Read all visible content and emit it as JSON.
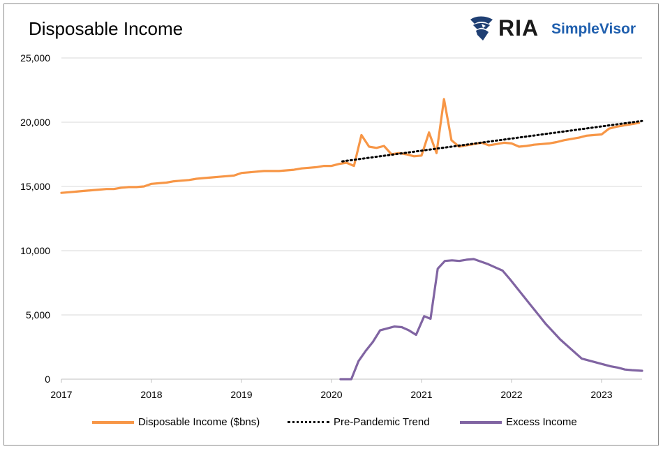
{
  "chart_data": {
    "type": "line",
    "title": "Disposable Income",
    "brand": {
      "name": "RIA",
      "product": "SimpleVisor",
      "product_color": "#1f5fae",
      "icon": "eagle-icon"
    },
    "ylim": [
      0,
      25000
    ],
    "yticks": [
      "25,000",
      "20,000",
      "15,000",
      "10,000",
      "5,000",
      "0"
    ],
    "ytick_values": [
      25000,
      20000,
      15000,
      10000,
      5000,
      0
    ],
    "xlim": [
      2017.0,
      2023.45
    ],
    "xticks": [
      "2017",
      "2018",
      "2019",
      "2020",
      "2021",
      "2022",
      "2023"
    ],
    "xtick_values": [
      2017,
      2018,
      2019,
      2020,
      2021,
      2022,
      2023
    ],
    "grid": "horizontal",
    "legend_position": "bottom",
    "series": [
      {
        "name": "Disposable Income ($bns)",
        "color": "#f79646",
        "style": "solid",
        "x": [
          2017.0,
          2017.083,
          2017.167,
          2017.25,
          2017.333,
          2017.417,
          2017.5,
          2017.583,
          2017.667,
          2017.75,
          2017.833,
          2017.917,
          2018.0,
          2018.083,
          2018.167,
          2018.25,
          2018.333,
          2018.417,
          2018.5,
          2018.583,
          2018.667,
          2018.75,
          2018.833,
          2018.917,
          2019.0,
          2019.083,
          2019.167,
          2019.25,
          2019.333,
          2019.417,
          2019.5,
          2019.583,
          2019.667,
          2019.75,
          2019.833,
          2019.917,
          2020.0,
          2020.083,
          2020.167,
          2020.25,
          2020.333,
          2020.417,
          2020.5,
          2020.583,
          2020.667,
          2020.75,
          2020.833,
          2020.917,
          2021.0,
          2021.083,
          2021.167,
          2021.25,
          2021.333,
          2021.417,
          2021.5,
          2021.583,
          2021.667,
          2021.75,
          2021.833,
          2021.917,
          2022.0,
          2022.083,
          2022.167,
          2022.25,
          2022.333,
          2022.417,
          2022.5,
          2022.583,
          2022.667,
          2022.75,
          2022.833,
          2022.917,
          2023.0,
          2023.083,
          2023.167,
          2023.25,
          2023.333,
          2023.417
        ],
        "values": [
          14500,
          14550,
          14600,
          14650,
          14700,
          14750,
          14800,
          14800,
          14900,
          14950,
          14950,
          15000,
          15200,
          15250,
          15300,
          15400,
          15450,
          15500,
          15600,
          15650,
          15700,
          15750,
          15800,
          15850,
          16050,
          16100,
          16150,
          16200,
          16200,
          16200,
          16250,
          16300,
          16400,
          16450,
          16500,
          16600,
          16600,
          16750,
          16850,
          16600,
          19000,
          18100,
          18000,
          18150,
          17500,
          17600,
          17500,
          17350,
          17400,
          19200,
          17600,
          21800,
          18600,
          18100,
          18200,
          18300,
          18400,
          18200,
          18300,
          18400,
          18350,
          18100,
          18150,
          18250,
          18300,
          18350,
          18450,
          18600,
          18700,
          18800,
          18950,
          19000,
          19050,
          19500,
          19650,
          19750,
          19850,
          19950
        ]
      },
      {
        "name": "Pre-Pandemic Trend",
        "color": "#000000",
        "style": "dotted",
        "x": [
          2020.12,
          2023.45
        ],
        "values": [
          16950,
          20100
        ]
      },
      {
        "name": "Excess Income",
        "color": "#8064a2",
        "style": "solid",
        "x": [
          2020.1,
          2020.22,
          2020.3,
          2020.38,
          2020.46,
          2020.54,
          2020.62,
          2020.7,
          2020.78,
          2020.86,
          2020.94,
          2021.03,
          2021.1,
          2021.18,
          2021.26,
          2021.34,
          2021.42,
          2021.5,
          2021.58,
          2021.66,
          2021.74,
          2021.82,
          2021.9,
          2021.98,
          2022.06,
          2022.14,
          2022.22,
          2022.3,
          2022.38,
          2022.46,
          2022.54,
          2022.62,
          2022.7,
          2022.78,
          2022.86,
          2022.94,
          2023.02,
          2023.1,
          2023.18,
          2023.26,
          2023.34,
          2023.45
        ],
        "values": [
          0,
          0,
          1400,
          2200,
          2900,
          3800,
          3950,
          4100,
          4050,
          3800,
          3450,
          4900,
          4700,
          8600,
          9200,
          9250,
          9200,
          9300,
          9350,
          9150,
          8950,
          8700,
          8450,
          7800,
          7100,
          6400,
          5700,
          5000,
          4300,
          3700,
          3100,
          2600,
          2100,
          1600,
          1450,
          1300,
          1150,
          1000,
          900,
          750,
          700,
          650
        ]
      }
    ]
  }
}
